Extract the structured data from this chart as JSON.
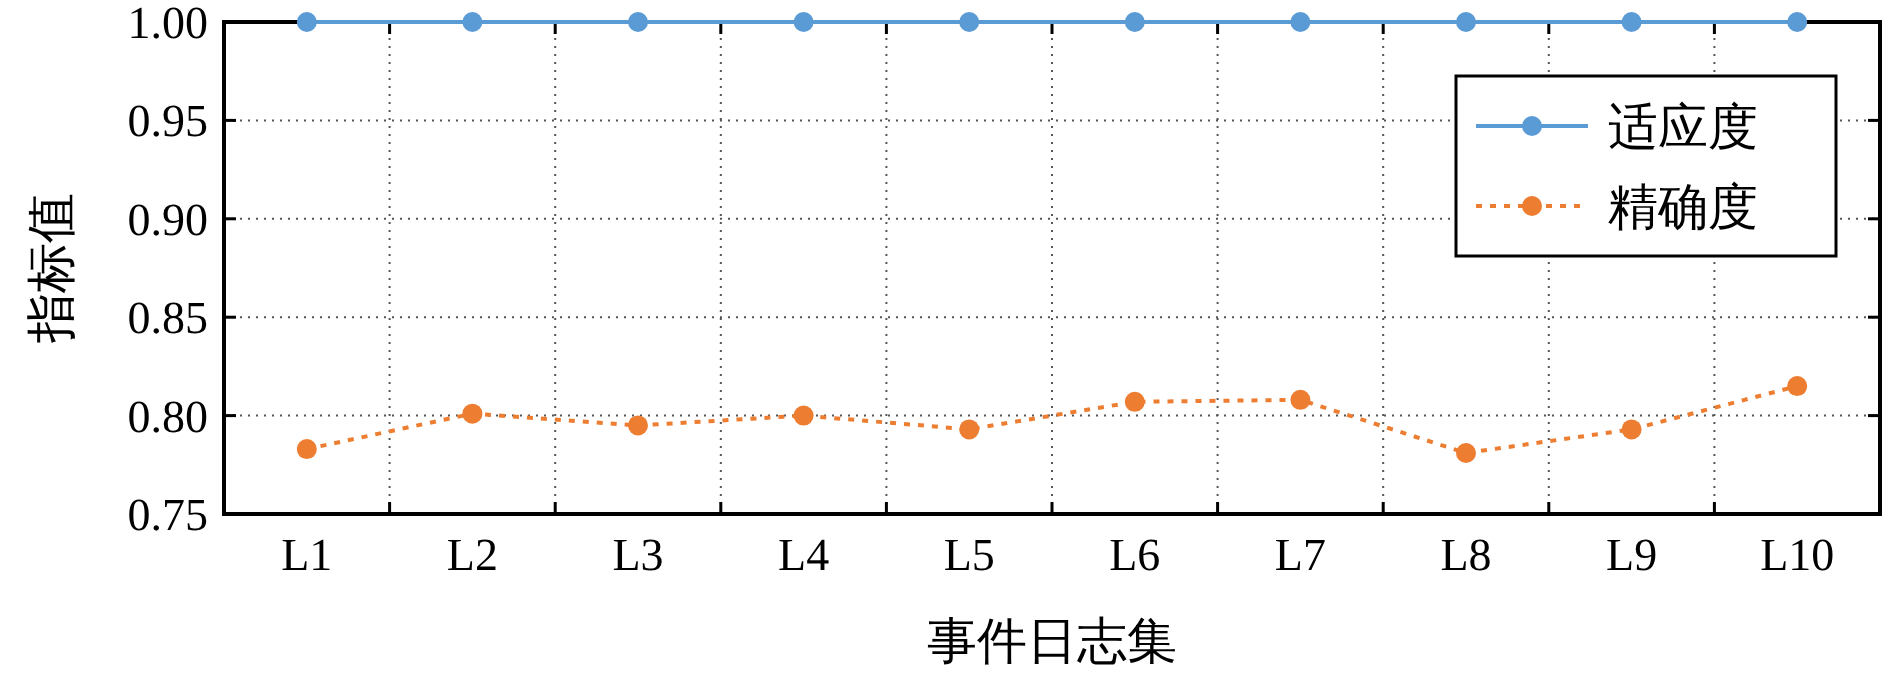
{
  "chart_data": {
    "type": "line",
    "xlabel": "事件日志集",
    "ylabel": "指标值",
    "categories": [
      "L1",
      "L2",
      "L3",
      "L4",
      "L5",
      "L6",
      "L7",
      "L8",
      "L9",
      "L10"
    ],
    "series": [
      {
        "name": "适应度",
        "color": "#5b9bd5",
        "line_style": "solid",
        "values": [
          1.0,
          1.0,
          1.0,
          1.0,
          1.0,
          1.0,
          1.0,
          1.0,
          1.0,
          1.0
        ]
      },
      {
        "name": "精确度",
        "color": "#ed7d31",
        "line_style": "dotted",
        "values": [
          0.783,
          0.801,
          0.795,
          0.8,
          0.793,
          0.807,
          0.808,
          0.781,
          0.793,
          0.815
        ]
      }
    ],
    "ylim": [
      0.75,
      1.0
    ],
    "yticks": [
      {
        "value": 0.75,
        "label": "0.75"
      },
      {
        "value": 0.8,
        "label": "0.80"
      },
      {
        "value": 0.85,
        "label": "0.85"
      },
      {
        "value": 0.9,
        "label": "0.90"
      },
      {
        "value": 0.95,
        "label": "0.95"
      },
      {
        "value": 1.0,
        "label": "1.00"
      }
    ],
    "grid": true,
    "legend": "top right",
    "marker": "circle"
  }
}
